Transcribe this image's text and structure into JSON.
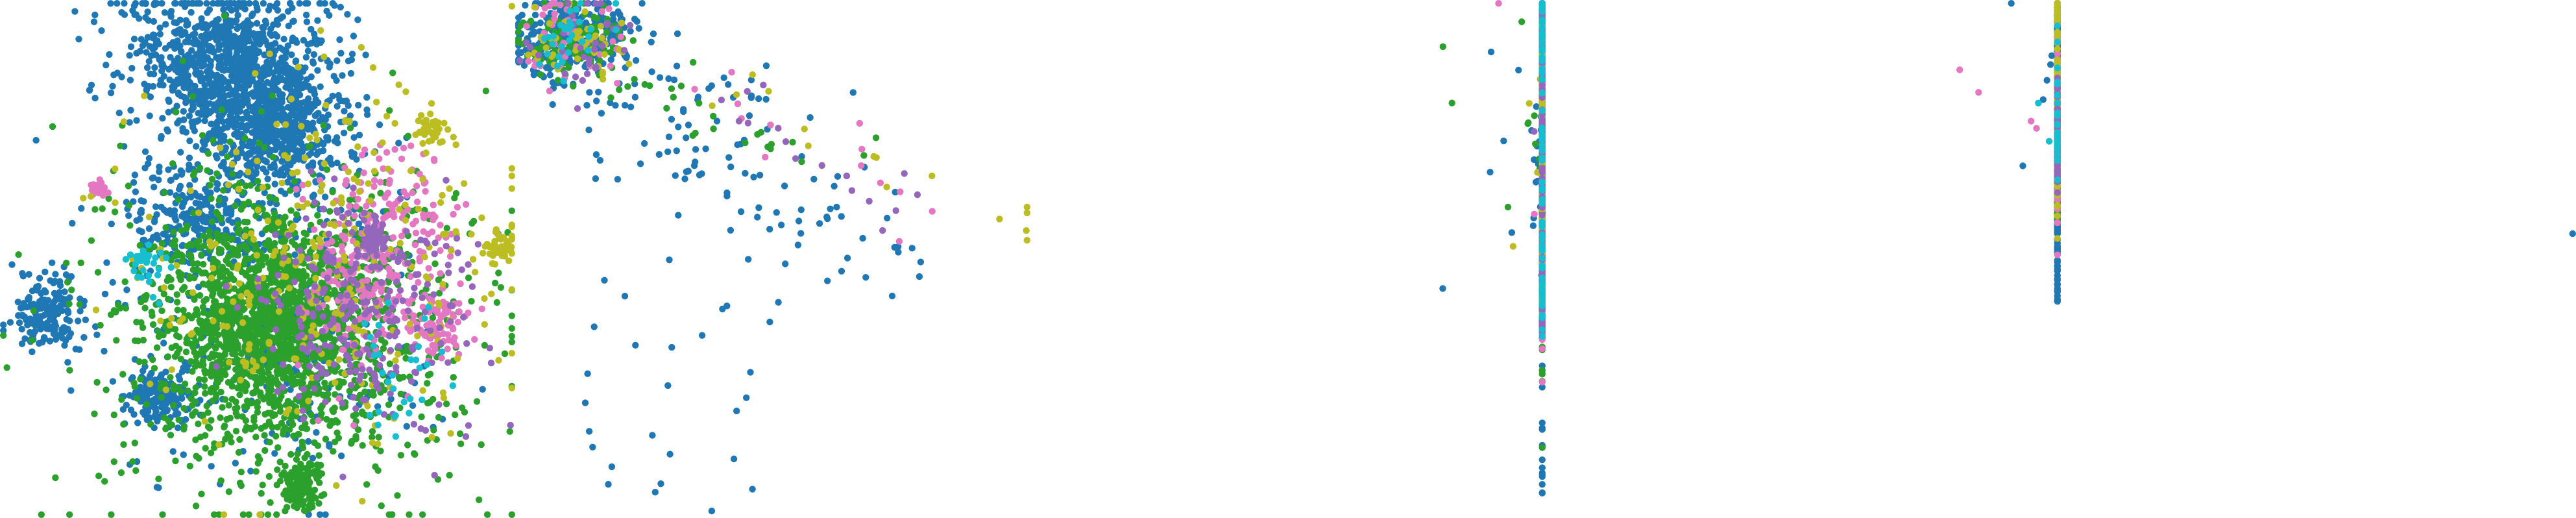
{
  "figure": {
    "background": "#ffffff"
  },
  "palette": {
    "blue": "#1f77b4",
    "green": "#2ca02c",
    "pink": "#e377c2",
    "olive": "#bcbd22",
    "purple": "#9467bd",
    "cyan": "#17becf"
  },
  "chart_data": [
    {
      "type": "scatter",
      "title": "",
      "xlabel": "",
      "ylabel": "",
      "axes_visible": false,
      "grid": false,
      "legend": "none",
      "shape": "multi-cluster blob embedding",
      "series": [
        {
          "color_key": "blue",
          "points": 2400
        },
        {
          "color_key": "green",
          "points": 2200
        },
        {
          "color_key": "pink",
          "points": 380
        },
        {
          "color_key": "olive",
          "points": 380
        },
        {
          "color_key": "purple",
          "points": 300
        },
        {
          "color_key": "cyan",
          "points": 60
        }
      ]
    },
    {
      "type": "scatter",
      "title": "",
      "xlabel": "",
      "ylabel": "",
      "axes_visible": false,
      "grid": false,
      "legend": "none",
      "shape": "dense top-left cluster with sparse outlier tail",
      "series": [
        {
          "color_key": "blue",
          "points": 420
        },
        {
          "color_key": "green",
          "points": 130
        },
        {
          "color_key": "pink",
          "points": 60
        },
        {
          "color_key": "olive",
          "points": 60
        },
        {
          "color_key": "purple",
          "points": 50
        },
        {
          "color_key": "cyan",
          "points": 30
        }
      ]
    },
    {
      "type": "scatter",
      "title": "",
      "xlabel": "",
      "ylabel": "",
      "axes_visible": false,
      "grid": false,
      "legend": "none",
      "shape": "ring with interior points and a tail to the right",
      "series": [
        {
          "color_key": "blue",
          "points": 1300
        },
        {
          "color_key": "green",
          "points": 700
        },
        {
          "color_key": "pink",
          "points": 140
        },
        {
          "color_key": "olive",
          "points": 140
        },
        {
          "color_key": "purple",
          "points": 130
        },
        {
          "color_key": "cyan",
          "points": 80
        }
      ]
    },
    {
      "type": "scatter",
      "title": "",
      "xlabel": "",
      "ylabel": "",
      "axes_visible": false,
      "grid": false,
      "legend": "none",
      "shape": "dense blue cluster with mixed tail to the right",
      "series": [
        {
          "color_key": "blue",
          "points": 1500
        },
        {
          "color_key": "green",
          "points": 380
        },
        {
          "color_key": "pink",
          "points": 110
        },
        {
          "color_key": "olive",
          "points": 140
        },
        {
          "color_key": "purple",
          "points": 60
        },
        {
          "color_key": "cyan",
          "points": 30
        }
      ]
    },
    {
      "type": "scatter",
      "title": "",
      "xlabel": "",
      "ylabel": "",
      "axes_visible": false,
      "grid": false,
      "legend": "none",
      "shape": "nearly empty panel",
      "series": [
        {
          "color_key": "blue",
          "points": 1
        }
      ]
    }
  ]
}
